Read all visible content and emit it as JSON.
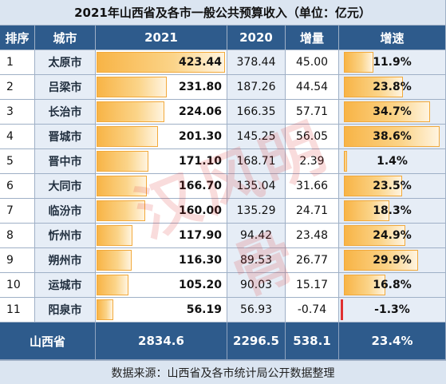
{
  "title": "2021年山西省及各市一般公共预算收入（单位：亿元）",
  "headers": {
    "rank": "排序",
    "city": "城市",
    "y2021": "2021",
    "y2020": "2020",
    "increase": "增量",
    "growth": "增速"
  },
  "rows": [
    {
      "rank": "1",
      "city": "太原市",
      "v2021": "423.44",
      "v2020": "378.44",
      "inc": "45.00",
      "growth": "11.9%"
    },
    {
      "rank": "2",
      "city": "吕梁市",
      "v2021": "231.80",
      "v2020": "187.26",
      "inc": "44.54",
      "growth": "23.8%"
    },
    {
      "rank": "3",
      "city": "长治市",
      "v2021": "224.06",
      "v2020": "166.35",
      "inc": "57.71",
      "growth": "34.7%"
    },
    {
      "rank": "4",
      "city": "晋城市",
      "v2021": "201.30",
      "v2020": "145.25",
      "inc": "56.05",
      "growth": "38.6%"
    },
    {
      "rank": "5",
      "city": "晋中市",
      "v2021": "171.10",
      "v2020": "168.71",
      "inc": "2.39",
      "growth": "1.4%"
    },
    {
      "rank": "6",
      "city": "大同市",
      "v2021": "166.70",
      "v2020": "135.04",
      "inc": "31.66",
      "growth": "23.5%"
    },
    {
      "rank": "7",
      "city": "临汾市",
      "v2021": "160.00",
      "v2020": "135.29",
      "inc": "24.71",
      "growth": "18.3%"
    },
    {
      "rank": "8",
      "city": "忻州市",
      "v2021": "117.90",
      "v2020": "94.42",
      "inc": "23.48",
      "growth": "24.9%"
    },
    {
      "rank": "9",
      "city": "朔州市",
      "v2021": "116.30",
      "v2020": "89.53",
      "inc": "26.77",
      "growth": "29.9%"
    },
    {
      "rank": "10",
      "city": "运城市",
      "v2021": "105.20",
      "v2020": "90.03",
      "inc": "15.17",
      "growth": "16.8%"
    },
    {
      "rank": "11",
      "city": "阳泉市",
      "v2021": "56.19",
      "v2020": "56.93",
      "inc": "-0.74",
      "growth": "-1.3%"
    }
  ],
  "total": {
    "label": "山西省",
    "v2021": "2834.6",
    "v2020": "2296.5",
    "inc": "538.1",
    "growth": "23.4%"
  },
  "footer": "数据来源：山西省及各市统计局公开数据整理",
  "watermark": "汉风明骨",
  "colors": {
    "header_bg": "#2e5b8c",
    "title_bg": "#dbe5f1",
    "bar": "#f8b446",
    "negative_bar": "#e03030"
  },
  "chart_data": {
    "type": "table",
    "title": "2021年山西省及各市一般公共预算收入（单位：亿元）",
    "columns": [
      "排序",
      "城市",
      "2021",
      "2020",
      "增量",
      "增速"
    ],
    "categories": [
      "太原市",
      "吕梁市",
      "长治市",
      "晋城市",
      "晋中市",
      "大同市",
      "临汾市",
      "忻州市",
      "朔州市",
      "运城市",
      "阳泉市"
    ],
    "series": [
      {
        "name": "2021",
        "values": [
          423.44,
          231.8,
          224.06,
          201.3,
          171.1,
          166.7,
          160.0,
          117.9,
          116.3,
          105.2,
          56.19
        ]
      },
      {
        "name": "2020",
        "values": [
          378.44,
          187.26,
          166.35,
          145.25,
          168.71,
          135.04,
          135.29,
          94.42,
          89.53,
          90.03,
          56.93
        ]
      },
      {
        "name": "增量",
        "values": [
          45.0,
          44.54,
          57.71,
          56.05,
          2.39,
          31.66,
          24.71,
          23.48,
          26.77,
          15.17,
          -0.74
        ]
      },
      {
        "name": "增速",
        "values": [
          11.9,
          23.8,
          34.7,
          38.6,
          1.4,
          23.5,
          18.3,
          24.9,
          29.9,
          16.8,
          -1.3
        ]
      }
    ],
    "bar_columns": [
      "2021",
      "增速"
    ],
    "ylim_2021": [
      0,
      423.44
    ],
    "ylim_growth": [
      0,
      38.6
    ]
  }
}
